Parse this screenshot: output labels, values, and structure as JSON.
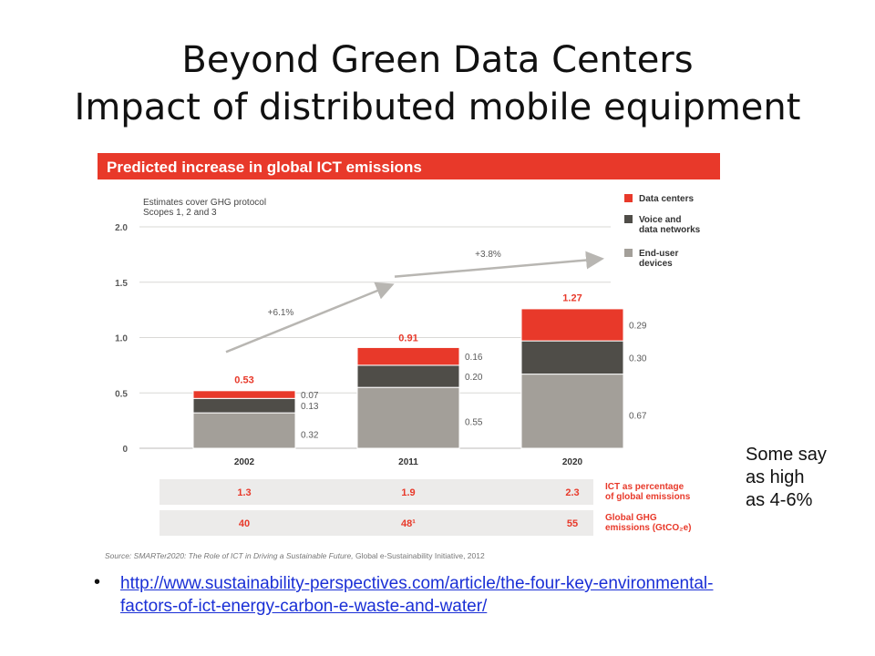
{
  "slide": {
    "title_line1": "Beyond Green Data Centers",
    "title_line2": "Impact of distributed mobile equipment",
    "side_note_lines": [
      "Some say",
      "as high",
      "as 4-6%"
    ],
    "link_lines": [
      "http://www.sustainability-perspectives.com/article/the-four-key-environmental-",
      "factors-of-ict-energy-carbon-e-waste-and-water/"
    ]
  },
  "chart_data": {
    "type": "bar",
    "stacked": true,
    "title": "Predicted increase in global ICT emissions",
    "note_lines": [
      "Estimates cover GHG protocol",
      "Scopes 1, 2 and 3"
    ],
    "categories": [
      "2002",
      "2011",
      "2020"
    ],
    "series": [
      {
        "name": "End-user devices",
        "name_lines": [
          "End-user",
          "devices"
        ],
        "values": [
          0.32,
          0.55,
          0.67
        ],
        "labels": [
          "0.32",
          "0.55",
          "0.67"
        ],
        "color": "#a39f99"
      },
      {
        "name": "Voice and data networks",
        "name_lines": [
          "Voice and",
          "data networks"
        ],
        "values": [
          0.13,
          0.2,
          0.3
        ],
        "labels": [
          "0.13",
          "0.20",
          "0.30"
        ],
        "color": "#4f4d48"
      },
      {
        "name": "Data centers",
        "name_lines": [
          "Data centers"
        ],
        "values": [
          0.07,
          0.16,
          0.29
        ],
        "labels": [
          "0.07",
          "0.16",
          "0.29"
        ],
        "color": "#e8392a"
      }
    ],
    "totals": [
      0.53,
      0.91,
      1.27
    ],
    "total_labels": [
      "0.53",
      "0.91",
      "1.27"
    ],
    "ylim": [
      0,
      2.0
    ],
    "yticks": [
      0,
      0.5,
      1.0,
      1.5,
      2.0
    ],
    "ytick_labels": [
      "0",
      "0.5",
      "1.0",
      "1.5",
      "2.0"
    ],
    "grid": true,
    "legend_position": "right",
    "growth_annotations": [
      {
        "from": "2002",
        "to": "2011",
        "label": "+6.1%"
      },
      {
        "from": "2011",
        "to": "2020",
        "label": "+3.8%"
      }
    ],
    "table_rows": [
      {
        "label_lines": [
          "ICT as percentage",
          "of global emissions"
        ],
        "values": [
          "1.3",
          "1.9",
          "2.3"
        ]
      },
      {
        "label_lines": [
          "Global GHG",
          "emissions (GtCO₂e)"
        ],
        "values": [
          "40",
          "48¹",
          "55"
        ]
      }
    ],
    "source_italic": "Source: SMARTer2020: The Role of ICT in Driving a Sustainable Future,",
    "source_rest": " Global e-Sustainability Initiative, 2012",
    "colors": {
      "header": "#e8392a",
      "accent": "#e8392a",
      "axis_text": "#5a5a5a",
      "table_fill": "#ecebea",
      "arrow": "#b8b6b2"
    }
  }
}
